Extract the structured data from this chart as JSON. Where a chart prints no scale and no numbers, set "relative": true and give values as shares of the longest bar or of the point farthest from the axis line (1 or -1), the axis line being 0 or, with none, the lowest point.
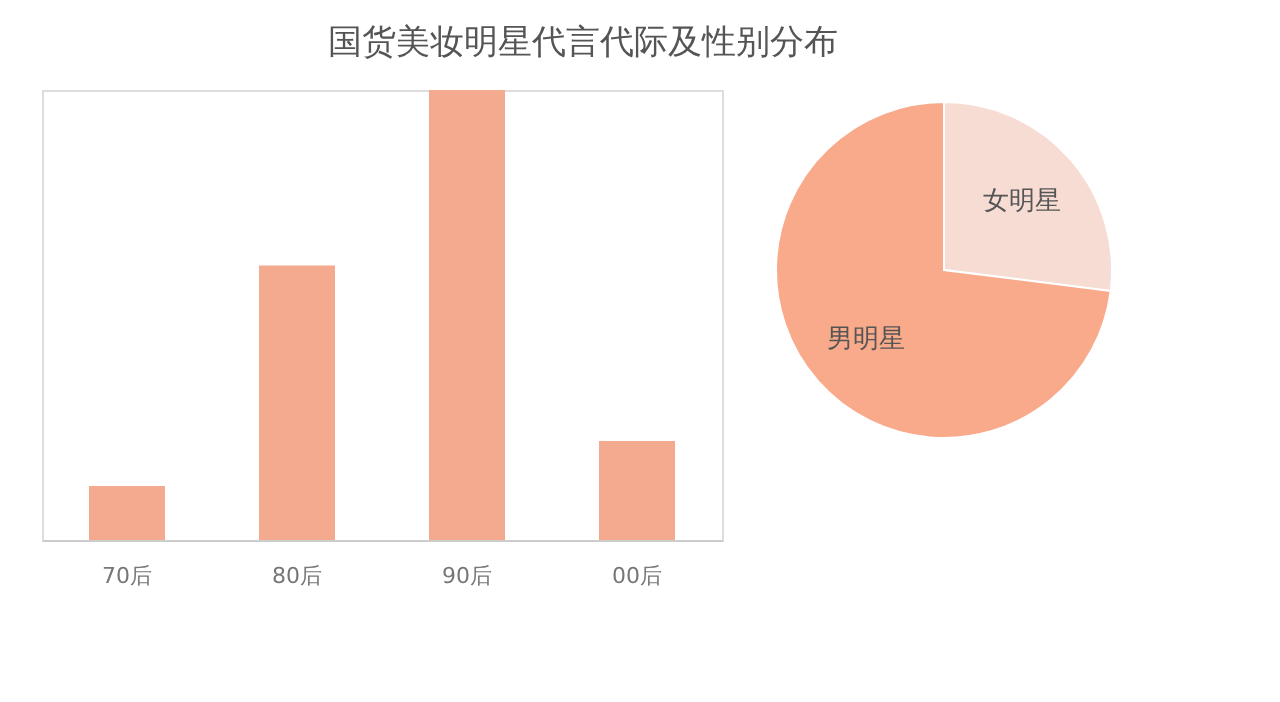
{
  "chart_data": [
    {
      "type": "bar",
      "title": "国货美妆明星代言代际及性别分布",
      "relative": true,
      "categories": [
        "70后",
        "80后",
        "90后",
        "00后"
      ],
      "values": [
        0.12,
        0.61,
        1,
        0.22
      ],
      "color": "#f4aa8e",
      "grid": false
    },
    {
      "type": "pie",
      "categories": [
        "女明星",
        "男明星"
      ],
      "values": [
        27,
        73
      ],
      "colors": [
        "#f6dcd3",
        "#f8aa8a"
      ],
      "legend": false
    }
  ]
}
